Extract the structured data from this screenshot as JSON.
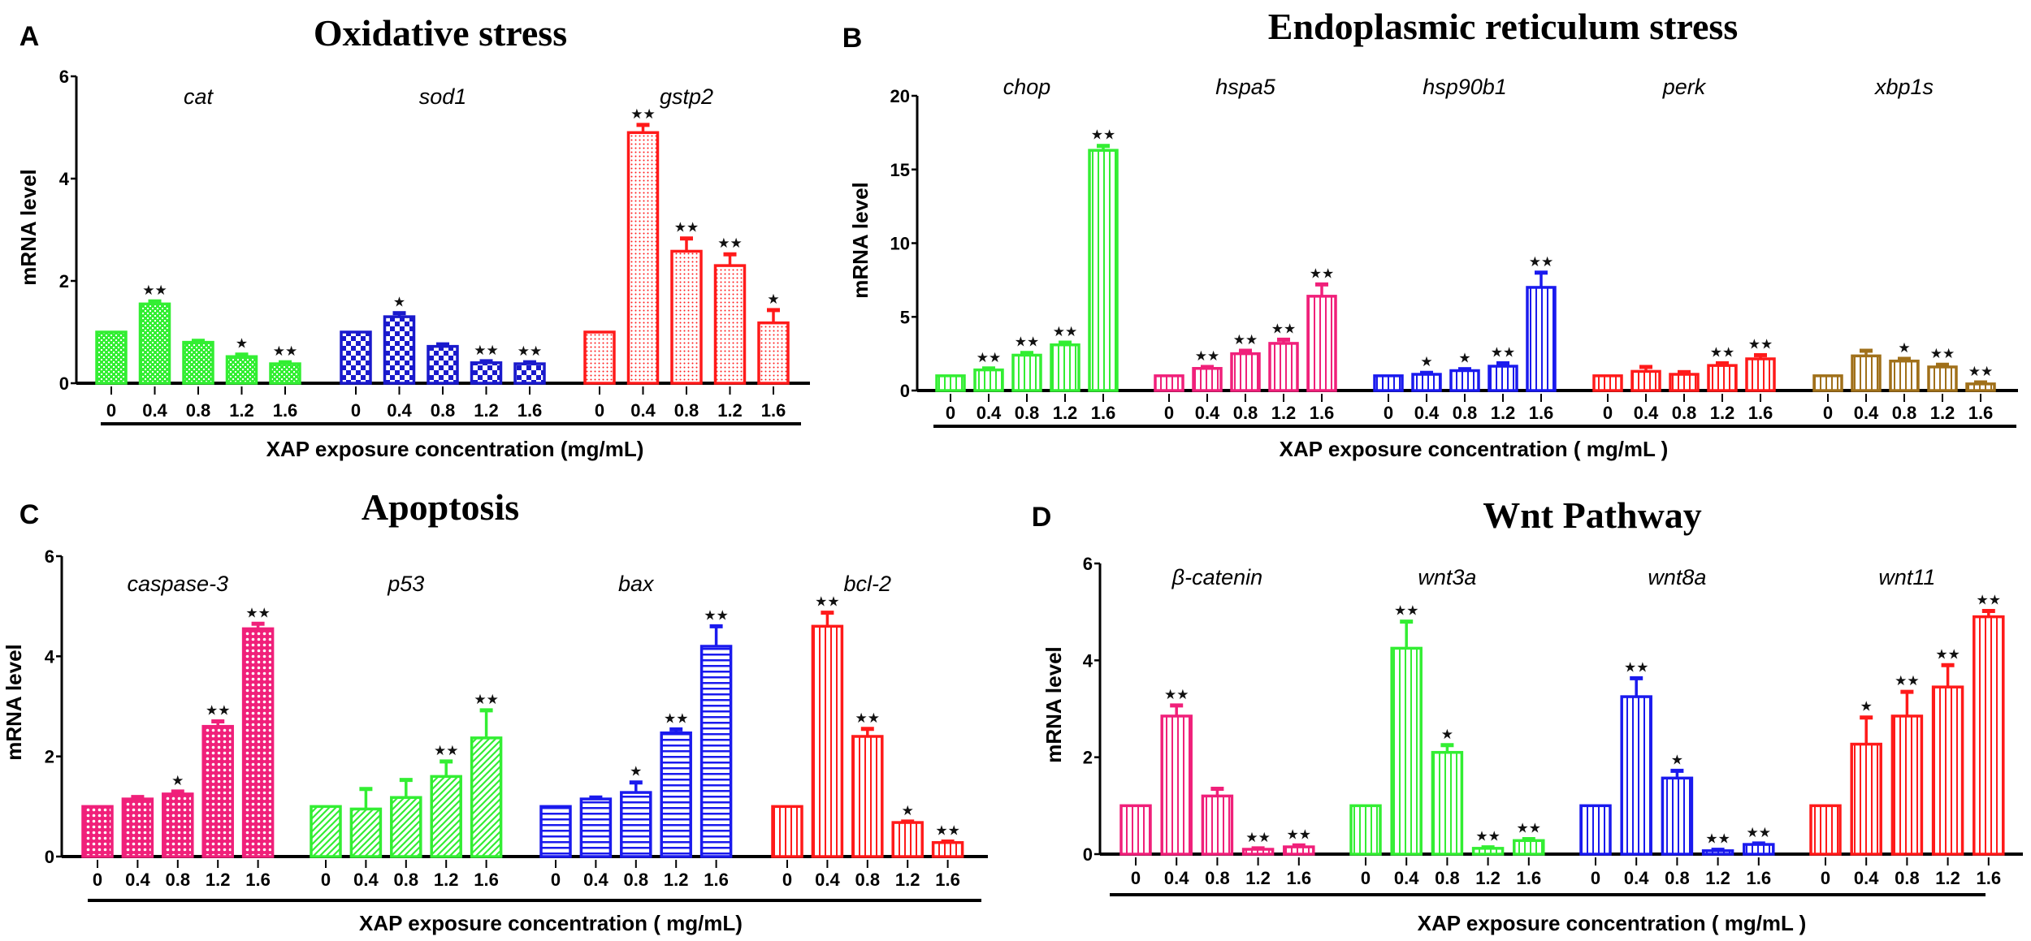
{
  "chart_data": [
    {
      "type": "bar",
      "panel_label": "A",
      "title": "Oxidative stress",
      "ylabel": "mRNA level",
      "xlabel": "XAP exposure concentration (mg/mL)",
      "ylim": [
        0,
        6
      ],
      "yticks": [
        "0",
        "2",
        "4",
        "6"
      ],
      "categories": [
        "0",
        "0.4",
        "0.8",
        "1.2",
        "1.6"
      ],
      "groups": [
        {
          "name": "cat",
          "color": "#33ee33",
          "pattern": "checker-fine",
          "values": [
            1,
            1.55,
            0.8,
            0.52,
            0.38
          ],
          "errors": [
            0,
            0.05,
            0.03,
            0.04,
            0.03
          ],
          "significance": [
            "",
            "**",
            "",
            "*",
            "**"
          ]
        },
        {
          "name": "sod1",
          "color": "#1a1acc",
          "pattern": "checker",
          "values": [
            1,
            1.3,
            0.72,
            0.4,
            0.38
          ],
          "errors": [
            0,
            0.07,
            0.04,
            0.03,
            0.03
          ],
          "significance": [
            "",
            "*",
            "",
            "**",
            "**"
          ]
        },
        {
          "name": "gstp2",
          "color": "#ff1a1a",
          "pattern": "dots",
          "values": [
            1,
            4.9,
            2.58,
            2.3,
            1.18
          ],
          "errors": [
            0,
            0.15,
            0.25,
            0.22,
            0.25
          ],
          "significance": [
            "",
            "**",
            "**",
            "**",
            "*"
          ]
        }
      ]
    },
    {
      "type": "bar",
      "panel_label": "B",
      "title": "Endoplasmic reticulum stress",
      "ylabel": "mRNA level",
      "xlabel": "XAP exposure concentration ( mg/mL )",
      "ylim": [
        0,
        20
      ],
      "yticks": [
        "0",
        "5",
        "10",
        "15",
        "20"
      ],
      "categories": [
        "0",
        "0.4",
        "0.8",
        "1.2",
        "1.6"
      ],
      "groups": [
        {
          "name": "chop",
          "color": "#33ee33",
          "pattern": "vstripes",
          "values": [
            1,
            1.4,
            2.4,
            3.1,
            16.3
          ],
          "errors": [
            0,
            0.1,
            0.15,
            0.15,
            0.3
          ],
          "significance": [
            "",
            "**",
            "**",
            "**",
            "**"
          ]
        },
        {
          "name": "hspa5",
          "color": "#f0207a",
          "pattern": "vstripes",
          "values": [
            1,
            1.5,
            2.5,
            3.2,
            6.4
          ],
          "errors": [
            0,
            0.1,
            0.2,
            0.25,
            0.8
          ],
          "significance": [
            "",
            "**",
            "**",
            "**",
            "**"
          ]
        },
        {
          "name": "hsp90b1",
          "color": "#1a1aee",
          "pattern": "vstripes",
          "values": [
            1,
            1.1,
            1.35,
            1.65,
            7.0
          ],
          "errors": [
            0,
            0.1,
            0.1,
            0.2,
            1.0
          ],
          "significance": [
            "",
            "*",
            "*",
            "**",
            "**"
          ]
        },
        {
          "name": "perk",
          "color": "#ff1a1a",
          "pattern": "vstripes",
          "values": [
            1,
            1.3,
            1.1,
            1.7,
            2.15
          ],
          "errors": [
            0,
            0.3,
            0.15,
            0.15,
            0.25
          ],
          "significance": [
            "",
            "",
            "",
            "**",
            "**"
          ]
        },
        {
          "name": "xbp1s",
          "color": "#a0701a",
          "pattern": "vstripes",
          "values": [
            1,
            2.35,
            2.0,
            1.6,
            0.45
          ],
          "errors": [
            0,
            0.35,
            0.15,
            0.15,
            0.1
          ],
          "significance": [
            "",
            "",
            "*",
            "**",
            "**"
          ]
        }
      ]
    },
    {
      "type": "bar",
      "panel_label": "C",
      "title": "Apoptosis",
      "ylabel": "mRNA level",
      "xlabel": "XAP exposure concentration ( mg/mL)",
      "ylim": [
        0,
        6
      ],
      "yticks": [
        "0",
        "2",
        "4",
        "6"
      ],
      "categories": [
        "0",
        "0.4",
        "0.8",
        "1.2",
        "1.6"
      ],
      "groups": [
        {
          "name": "caspase-3",
          "color": "#f0207a",
          "pattern": "crosshatch",
          "values": [
            1,
            1.15,
            1.25,
            2.6,
            4.55
          ],
          "errors": [
            0,
            0.04,
            0.05,
            0.1,
            0.1
          ],
          "significance": [
            "",
            "",
            "*",
            "**",
            "**"
          ]
        },
        {
          "name": "p53",
          "color": "#33ee33",
          "pattern": "diagonal",
          "values": [
            1,
            0.95,
            1.18,
            1.6,
            2.37
          ],
          "errors": [
            0,
            0.4,
            0.35,
            0.3,
            0.55
          ],
          "significance": [
            "",
            "",
            "",
            "**",
            "**"
          ]
        },
        {
          "name": "bax",
          "color": "#1a1aee",
          "pattern": "hstripes",
          "values": [
            1,
            1.15,
            1.28,
            2.47,
            4.2
          ],
          "errors": [
            0,
            0.03,
            0.2,
            0.07,
            0.4
          ],
          "significance": [
            "",
            "",
            "*",
            "**",
            "**"
          ]
        },
        {
          "name": "bcl-2",
          "color": "#ff1a1a",
          "pattern": "vstripes",
          "values": [
            1,
            4.6,
            2.4,
            0.68,
            0.28
          ],
          "errors": [
            0,
            0.27,
            0.15,
            0.02,
            0.02
          ],
          "significance": [
            "",
            "**",
            "**",
            "*",
            "**"
          ]
        }
      ]
    },
    {
      "type": "bar",
      "panel_label": "D",
      "title": "Wnt Pathway",
      "ylabel": "mRNA level",
      "xlabel": "XAP exposure concentration ( mg/mL )",
      "ylim": [
        0,
        6
      ],
      "yticks": [
        "0",
        "2",
        "4",
        "6"
      ],
      "categories": [
        "0",
        "0.4",
        "0.8",
        "1.2",
        "1.6"
      ],
      "groups": [
        {
          "name": "β-catenin",
          "color": "#f0207a",
          "pattern": "vstripes",
          "values": [
            1,
            2.85,
            1.2,
            0.1,
            0.15
          ],
          "errors": [
            0,
            0.22,
            0.15,
            0.02,
            0.03
          ],
          "significance": [
            "",
            "**",
            "",
            "**",
            "**"
          ]
        },
        {
          "name": "wnt3a",
          "color": "#33ee33",
          "pattern": "vstripes",
          "values": [
            1,
            4.25,
            2.1,
            0.12,
            0.28
          ],
          "errors": [
            0,
            0.55,
            0.15,
            0.02,
            0.03
          ],
          "significance": [
            "",
            "**",
            "*",
            "**",
            "**"
          ]
        },
        {
          "name": "wnt8a",
          "color": "#1a1aee",
          "pattern": "vstripes",
          "values": [
            1,
            3.25,
            1.57,
            0.07,
            0.2
          ],
          "errors": [
            0,
            0.38,
            0.15,
            0.02,
            0.02
          ],
          "significance": [
            "",
            "**",
            "*",
            "**",
            "**"
          ]
        },
        {
          "name": "wnt11",
          "color": "#ff1a1a",
          "pattern": "vstripes",
          "values": [
            1,
            2.27,
            2.85,
            3.45,
            4.9
          ],
          "errors": [
            0,
            0.55,
            0.5,
            0.45,
            0.12
          ],
          "significance": [
            "",
            "*",
            "**",
            "**",
            "**"
          ]
        }
      ]
    }
  ]
}
